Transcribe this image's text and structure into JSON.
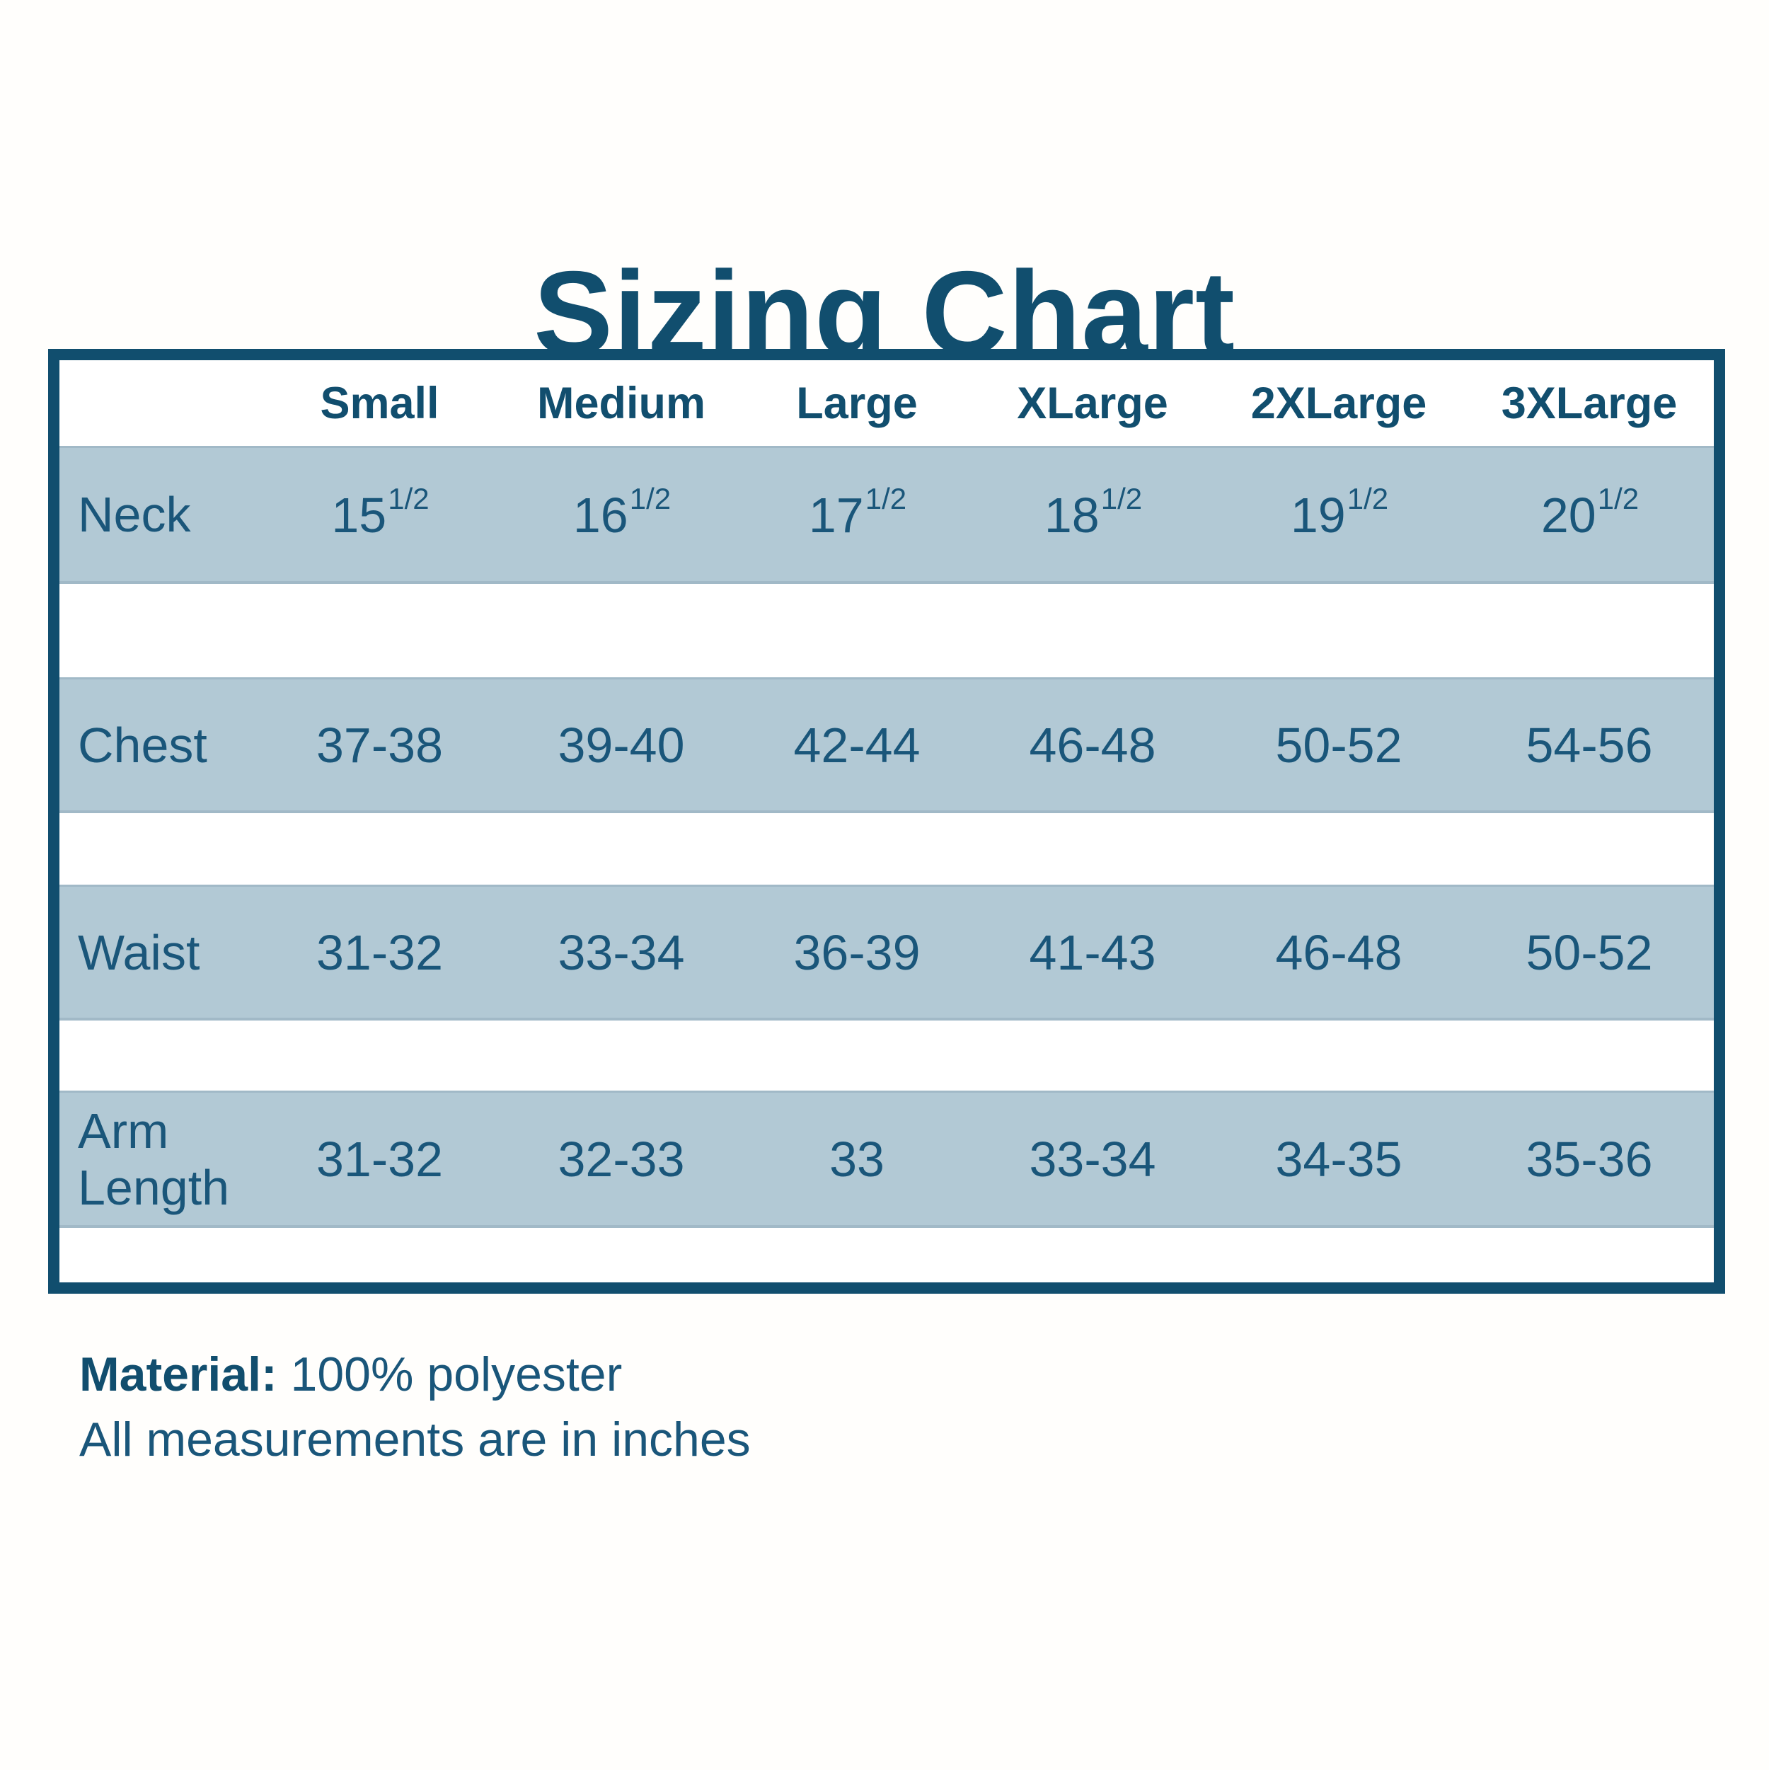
{
  "title": "Sizing Chart",
  "chart_data": {
    "type": "table",
    "title": "Sizing Chart",
    "columns": [
      "",
      "Small",
      "Medium",
      "Large",
      "XLarge",
      "2XLarge",
      "3XLarge"
    ],
    "rows": [
      {
        "label": "Neck",
        "values": [
          {
            "base": "15",
            "sup": "1/2"
          },
          {
            "base": "16",
            "sup": "1/2"
          },
          {
            "base": "17",
            "sup": "1/2"
          },
          {
            "base": "18",
            "sup": "1/2"
          },
          {
            "base": "19",
            "sup": "1/2"
          },
          {
            "base": "20",
            "sup": "1/2"
          }
        ]
      },
      {
        "label": "Chest",
        "values": [
          "37-38",
          "39-40",
          "42-44",
          "46-48",
          "50-52",
          "54-56"
        ]
      },
      {
        "label": "Waist",
        "values": [
          "31-32",
          "33-34",
          "36-39",
          "41-43",
          "46-48",
          "50-52"
        ]
      },
      {
        "label": "Arm Length",
        "values": [
          "31-32",
          "32-33",
          "33",
          "33-34",
          "34-35",
          "35-36"
        ]
      }
    ],
    "layout_hints": {
      "banded_rows": true,
      "band_color": "#b2c9d5",
      "grid": false,
      "units_note": "inches"
    }
  },
  "footer": {
    "material_label": "Material:",
    "material_value": " 100% polyester",
    "note": "All measurements are in inches"
  },
  "colors": {
    "accent_dark_blue": "#114e6e",
    "text_blue": "#1a567a",
    "band_light_blue": "#b2c9d5",
    "background": "#ffffff"
  }
}
